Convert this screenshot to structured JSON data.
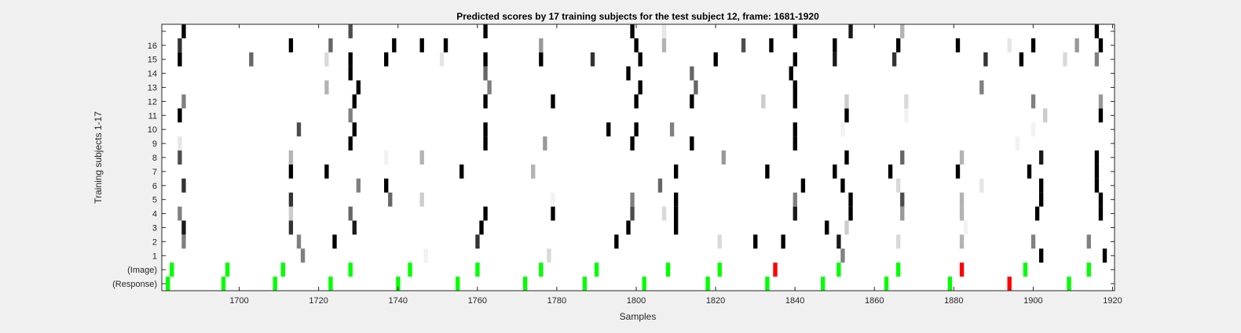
{
  "chart_data": {
    "type": "heatmap",
    "title": "Predicted scores by 17 training subjects for the test subject 12, frame: 1681-1920",
    "xlabel": "Samples",
    "ylabel": "Training subjects 1-17",
    "xlim": [
      1681,
      1920
    ],
    "x_ticks": [
      1700,
      1720,
      1740,
      1760,
      1780,
      1800,
      1820,
      1840,
      1860,
      1880,
      1900,
      1920
    ],
    "y_tick_labels": [
      "(Response)",
      "(Image)",
      "1",
      "2",
      "3",
      "4",
      "5",
      "6",
      "7",
      "8",
      "9",
      "10",
      "11",
      "12",
      "13",
      "14",
      "15",
      "16",
      ""
    ],
    "grid": false,
    "legend": "none",
    "colors": {
      "black": "#000000",
      "green": "#00ff00",
      "red": "#ff0000",
      "background": "#ffffff"
    },
    "rows": [
      {
        "label": "(Response)",
        "cells": [
          [
            1682,
            "g"
          ],
          [
            1696,
            "g"
          ],
          [
            1709,
            "g"
          ],
          [
            1723,
            "g"
          ],
          [
            1740,
            "g"
          ],
          [
            1755,
            "g"
          ],
          [
            1772,
            "g"
          ],
          [
            1787,
            "g"
          ],
          [
            1802,
            "g"
          ],
          [
            1818,
            "g"
          ],
          [
            1833,
            "g"
          ],
          [
            1847,
            "g"
          ],
          [
            1863,
            "g"
          ],
          [
            1879,
            "g"
          ],
          [
            1894,
            "r"
          ],
          [
            1909,
            "g"
          ]
        ]
      },
      {
        "label": "(Image)",
        "cells": [
          [
            1683,
            "g"
          ],
          [
            1697,
            "g"
          ],
          [
            1711,
            "g"
          ],
          [
            1728,
            "g"
          ],
          [
            1743,
            "g"
          ],
          [
            1760,
            "g"
          ],
          [
            1776,
            "g"
          ],
          [
            1790,
            "g"
          ],
          [
            1808,
            "g"
          ],
          [
            1821,
            "g"
          ],
          [
            1835,
            "r"
          ],
          [
            1851,
            "g"
          ],
          [
            1866,
            "g"
          ],
          [
            1882,
            "r"
          ],
          [
            1898,
            "g"
          ],
          [
            1914,
            "g"
          ]
        ]
      },
      {
        "label": "1",
        "cells": [
          [
            1716,
            0.5
          ],
          [
            1747,
            0.05
          ],
          [
            1778,
            0.15
          ],
          [
            1852,
            0.5
          ],
          [
            1902,
            1
          ],
          [
            1918,
            1
          ]
        ]
      },
      {
        "label": "2",
        "cells": [
          [
            1686,
            0.5
          ],
          [
            1715,
            0.5
          ],
          [
            1724,
            1
          ],
          [
            1760,
            0.8
          ],
          [
            1795,
            1
          ],
          [
            1830,
            1
          ],
          [
            1837,
            1
          ],
          [
            1851,
            0.9
          ],
          [
            1821,
            0.15
          ],
          [
            1866,
            0.15
          ],
          [
            1882,
            0.3
          ],
          [
            1900,
            0.5
          ],
          [
            1914,
            0.5
          ]
        ]
      },
      {
        "label": "3",
        "cells": [
          [
            1686,
            0.9
          ],
          [
            1713,
            0.8
          ],
          [
            1729,
            0.9
          ],
          [
            1761,
            1
          ],
          [
            1798,
            1
          ],
          [
            1810,
            1
          ],
          [
            1848,
            1
          ],
          [
            1853,
            0.2
          ],
          [
            1883,
            0.05
          ]
        ]
      },
      {
        "label": "4",
        "cells": [
          [
            1685,
            0.5
          ],
          [
            1713,
            0.2
          ],
          [
            1728,
            0.6
          ],
          [
            1762,
            1
          ],
          [
            1779,
            1
          ],
          [
            1799,
            0.7
          ],
          [
            1807,
            0.15
          ],
          [
            1810,
            1
          ],
          [
            1840,
            0.9
          ],
          [
            1854,
            1
          ],
          [
            1867,
            0.4
          ],
          [
            1882,
            0.3
          ],
          [
            1901,
            1
          ],
          [
            1917,
            1
          ]
        ]
      },
      {
        "label": "5",
        "cells": [
          [
            1713,
            0.8
          ],
          [
            1738,
            0.6
          ],
          [
            1746,
            0.2
          ],
          [
            1779,
            0.05
          ],
          [
            1799,
            0.5
          ],
          [
            1810,
            1
          ],
          [
            1840,
            0.5
          ],
          [
            1854,
            1
          ],
          [
            1867,
            0.7
          ],
          [
            1882,
            0.3
          ],
          [
            1902,
            1
          ],
          [
            1917,
            1
          ]
        ]
      },
      {
        "label": "6",
        "cells": [
          [
            1686,
            0.8
          ],
          [
            1730,
            0.5
          ],
          [
            1737,
            1
          ],
          [
            1806,
            0.6
          ],
          [
            1842,
            1
          ],
          [
            1852,
            1
          ],
          [
            1866,
            0.15
          ],
          [
            1887,
            0.1
          ],
          [
            1902,
            1
          ],
          [
            1916,
            1
          ]
        ]
      },
      {
        "label": "7",
        "cells": [
          [
            1713,
            1
          ],
          [
            1722,
            1
          ],
          [
            1756,
            1
          ],
          [
            1774,
            0.3
          ],
          [
            1810,
            1
          ],
          [
            1833,
            1
          ],
          [
            1850,
            1
          ],
          [
            1864,
            1
          ],
          [
            1881,
            1
          ],
          [
            1899,
            1
          ],
          [
            1916,
            1
          ]
        ]
      },
      {
        "label": "8",
        "cells": [
          [
            1685,
            0.7
          ],
          [
            1713,
            0.3
          ],
          [
            1737,
            0.05
          ],
          [
            1746,
            0.3
          ],
          [
            1822,
            0.4
          ],
          [
            1853,
            1
          ],
          [
            1867,
            0.6
          ],
          [
            1882,
            0.3
          ],
          [
            1902,
            0.9
          ],
          [
            1916,
            1
          ]
        ]
      },
      {
        "label": "9",
        "cells": [
          [
            1685,
            0.1
          ],
          [
            1728,
            1
          ],
          [
            1762,
            1
          ],
          [
            1777,
            0.4
          ],
          [
            1799,
            1
          ],
          [
            1814,
            1
          ],
          [
            1840,
            1
          ],
          [
            1896,
            0.05
          ]
        ]
      },
      {
        "label": "10",
        "cells": [
          [
            1715,
            0.7
          ],
          [
            1729,
            1
          ],
          [
            1762,
            1
          ],
          [
            1793,
            1
          ],
          [
            1800,
            1
          ],
          [
            1809,
            0.5
          ],
          [
            1840,
            1
          ],
          [
            1852,
            0.05
          ],
          [
            1900,
            0.05
          ]
        ]
      },
      {
        "label": "11",
        "cells": [
          [
            1685,
            1
          ],
          [
            1728,
            0.5
          ],
          [
            1853,
            1
          ],
          [
            1868,
            0.05
          ],
          [
            1903,
            0.2
          ],
          [
            1917,
            1
          ]
        ]
      },
      {
        "label": "12",
        "cells": [
          [
            1686,
            0.5
          ],
          [
            1729,
            1
          ],
          [
            1762,
            1
          ],
          [
            1779,
            1
          ],
          [
            1800,
            1
          ],
          [
            1814,
            1
          ],
          [
            1832,
            0.2
          ],
          [
            1840,
            1
          ],
          [
            1853,
            0.2
          ],
          [
            1868,
            0.15
          ],
          [
            1900,
            0.5
          ],
          [
            1917,
            0.4
          ]
        ]
      },
      {
        "label": "13",
        "cells": [
          [
            1722,
            0.3
          ],
          [
            1730,
            1
          ],
          [
            1763,
            0.5
          ],
          [
            1801,
            1
          ],
          [
            1815,
            0.6
          ],
          [
            1840,
            1
          ],
          [
            1887,
            0.5
          ]
        ]
      },
      {
        "label": "14",
        "cells": [
          [
            1728,
            1
          ],
          [
            1762,
            0.6
          ],
          [
            1798,
            1
          ],
          [
            1814,
            0.6
          ],
          [
            1839,
            1
          ]
        ]
      },
      {
        "label": "15",
        "cells": [
          [
            1685,
            1
          ],
          [
            1703,
            0.6
          ],
          [
            1722,
            0.15
          ],
          [
            1728,
            1
          ],
          [
            1737,
            1
          ],
          [
            1751,
            0.1
          ],
          [
            1762,
            1
          ],
          [
            1776,
            1
          ],
          [
            1789,
            0.8
          ],
          [
            1801,
            1
          ],
          [
            1820,
            1
          ],
          [
            1840,
            1
          ],
          [
            1850,
            0.9
          ],
          [
            1865,
            0.8
          ],
          [
            1888,
            0.8
          ],
          [
            1897,
            1
          ],
          [
            1908,
            0.15
          ],
          [
            1916,
            0.5
          ]
        ]
      },
      {
        "label": "16",
        "cells": [
          [
            1685,
            0.8
          ],
          [
            1713,
            1
          ],
          [
            1723,
            0.6
          ],
          [
            1739,
            1
          ],
          [
            1746,
            1
          ],
          [
            1752,
            1
          ],
          [
            1776,
            0.4
          ],
          [
            1800,
            1
          ],
          [
            1807,
            0.3
          ],
          [
            1827,
            0.7
          ],
          [
            1834,
            1
          ],
          [
            1850,
            1
          ],
          [
            1866,
            1
          ],
          [
            1881,
            1
          ],
          [
            1894,
            0.1
          ],
          [
            1900,
            1
          ],
          [
            1911,
            0.4
          ],
          [
            1917,
            1
          ]
        ]
      },
      {
        "label": "",
        "cells": [
          [
            1686,
            1
          ],
          [
            1728,
            0.7
          ],
          [
            1762,
            1
          ],
          [
            1799,
            1
          ],
          [
            1807,
            0.1
          ],
          [
            1840,
            1
          ],
          [
            1854,
            0.9
          ],
          [
            1867,
            0.3
          ],
          [
            1916,
            1
          ]
        ]
      }
    ]
  }
}
